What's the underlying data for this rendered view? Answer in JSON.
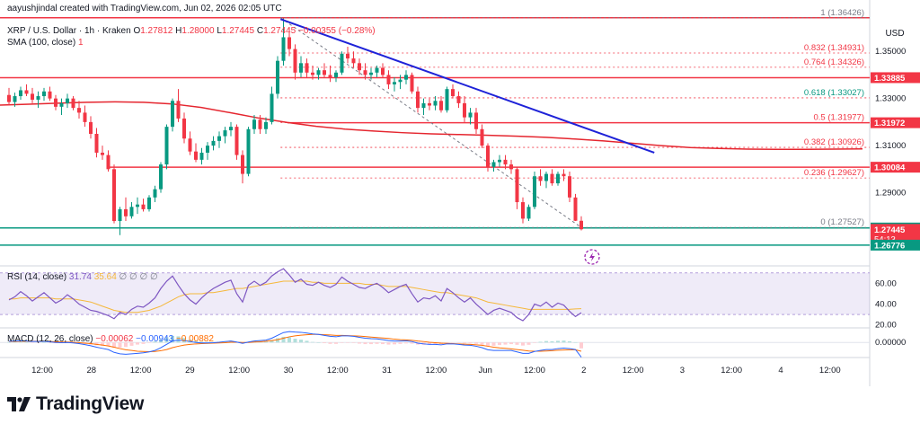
{
  "header": {
    "creator": "aayushjindal created with TradingView.com, Jun 02, 2026 02:05 UTC"
  },
  "symbol": {
    "title": "XRP / U.S. Dollar · 1h · Kraken",
    "o_label": "O",
    "open": "1.27812",
    "h_label": "H",
    "high": "1.28000",
    "l_label": "L",
    "low": "1.27445",
    "c_label": "C",
    "close": "1.27445",
    "change": "−0.00355 (−0.28%)"
  },
  "sma": {
    "label": "SMA (100, close)",
    "value": "1"
  },
  "currency": "USD",
  "price_axis": {
    "ticks": [
      "1.35000",
      "1.33000",
      "1.31000",
      "1.29000",
      "1.27000"
    ],
    "faded_tick": "1.35000",
    "tags": [
      {
        "name": "level-1-33885",
        "text": "1.33885",
        "value": 1.33885,
        "color": "#f23645"
      },
      {
        "name": "level-1-31972",
        "text": "1.31972",
        "value": 1.31972,
        "color": "#f23645"
      },
      {
        "name": "level-1-30084",
        "text": "1.30084",
        "value": 1.30084,
        "color": "#f23645"
      },
      {
        "name": "level-1-27504",
        "text": "1.27504",
        "value": 1.27504,
        "color": "#089981"
      },
      {
        "name": "last-price",
        "text": "1.27445",
        "value": 1.27445,
        "color": "#f23645",
        "countdown": "54:13"
      },
      {
        "name": "level-1-26776",
        "text": "1.26776",
        "value": 1.26776,
        "color": "#089981"
      }
    ]
  },
  "fibonacci": [
    {
      "ratio": "1",
      "price": "(1.36426)",
      "value": 1.36426
    },
    {
      "ratio": "0.832",
      "price": "(1.34931)",
      "value": 1.34931
    },
    {
      "ratio": "0.764",
      "price": "(1.34326)",
      "value": 1.34326
    },
    {
      "ratio": "0.618",
      "price": "(1.33027)",
      "value": 1.33027
    },
    {
      "ratio": "0.5",
      "price": "(1.31977)",
      "value": 1.31977
    },
    {
      "ratio": "0.382",
      "price": "(1.30926)",
      "value": 1.30926
    },
    {
      "ratio": "0.236",
      "price": "(1.29627)",
      "value": 1.29627
    },
    {
      "ratio": "0",
      "price": "(1.27527)",
      "value": 1.27527
    }
  ],
  "horizontal_levels": [
    {
      "value": 1.36426,
      "color": "#f23645"
    },
    {
      "value": 1.33885,
      "color": "#f23645"
    },
    {
      "value": 1.31972,
      "color": "#f23645"
    },
    {
      "value": 1.30084,
      "color": "#f23645"
    },
    {
      "value": 1.27504,
      "color": "#089981"
    },
    {
      "value": 1.26776,
      "color": "#089981"
    }
  ],
  "rsi": {
    "label": "RSI (14, close)",
    "value": "31.74",
    "ma_value": "35.64",
    "placeholders": "∅ ∅ ∅ ∅",
    "ticks": [
      "60.00",
      "40.00",
      "20.00"
    ]
  },
  "macd": {
    "label": "MACD (12, 26, close)",
    "v1": "−0.00062",
    "v2": "−0.00943",
    "v3": "−0.00882",
    "ticks": [
      "0.00000"
    ]
  },
  "time_axis": [
    "12:00",
    "28",
    "12:00",
    "29",
    "12:00",
    "30",
    "12:00",
    "31",
    "12:00",
    "Jun",
    "12:00",
    "2",
    "12:00",
    "3",
    "12:00",
    "4",
    "12:00"
  ],
  "brand": "TradingView",
  "colors": {
    "up": "#089981",
    "down": "#f23645",
    "sma": "#e5262f",
    "trendline": "#1e22d8",
    "rsi": "#7e57c2",
    "rsi_ma": "#f5b83b",
    "macd": "#2962ff",
    "signal": "#ff6d00"
  },
  "chart_data": {
    "type": "candlestick",
    "interval": "1h",
    "x_range": [
      "27 May 2026",
      "4 Jun 2026"
    ],
    "ylim": [
      1.262,
      1.368
    ],
    "candles": [
      {
        "o": 1.3315,
        "h": 1.3345,
        "l": 1.327,
        "c": 1.3285
      },
      {
        "o": 1.3285,
        "h": 1.3325,
        "l": 1.3265,
        "c": 1.331
      },
      {
        "o": 1.331,
        "h": 1.335,
        "l": 1.3295,
        "c": 1.3335
      },
      {
        "o": 1.3335,
        "h": 1.336,
        "l": 1.331,
        "c": 1.332
      },
      {
        "o": 1.332,
        "h": 1.3345,
        "l": 1.328,
        "c": 1.3295
      },
      {
        "o": 1.3295,
        "h": 1.333,
        "l": 1.326,
        "c": 1.331
      },
      {
        "o": 1.331,
        "h": 1.3345,
        "l": 1.329,
        "c": 1.333
      },
      {
        "o": 1.333,
        "h": 1.335,
        "l": 1.329,
        "c": 1.33
      },
      {
        "o": 1.33,
        "h": 1.3315,
        "l": 1.325,
        "c": 1.3265
      },
      {
        "o": 1.3265,
        "h": 1.33,
        "l": 1.323,
        "c": 1.328
      },
      {
        "o": 1.328,
        "h": 1.332,
        "l": 1.326,
        "c": 1.33
      },
      {
        "o": 1.33,
        "h": 1.331,
        "l": 1.325,
        "c": 1.326
      },
      {
        "o": 1.326,
        "h": 1.329,
        "l": 1.3215,
        "c": 1.324
      },
      {
        "o": 1.324,
        "h": 1.327,
        "l": 1.318,
        "c": 1.32
      },
      {
        "o": 1.32,
        "h": 1.3225,
        "l": 1.313,
        "c": 1.315
      },
      {
        "o": 1.315,
        "h": 1.3175,
        "l": 1.305,
        "c": 1.307
      },
      {
        "o": 1.307,
        "h": 1.31,
        "l": 1.304,
        "c": 1.306
      },
      {
        "o": 1.306,
        "h": 1.308,
        "l": 1.299,
        "c": 1.3
      },
      {
        "o": 1.3,
        "h": 1.302,
        "l": 1.277,
        "c": 1.278
      },
      {
        "o": 1.278,
        "h": 1.284,
        "l": 1.272,
        "c": 1.283
      },
      {
        "o": 1.283,
        "h": 1.288,
        "l": 1.278,
        "c": 1.28
      },
      {
        "o": 1.28,
        "h": 1.286,
        "l": 1.279,
        "c": 1.284
      },
      {
        "o": 1.284,
        "h": 1.288,
        "l": 1.281,
        "c": 1.285
      },
      {
        "o": 1.285,
        "h": 1.2875,
        "l": 1.282,
        "c": 1.283
      },
      {
        "o": 1.283,
        "h": 1.289,
        "l": 1.282,
        "c": 1.288
      },
      {
        "o": 1.288,
        "h": 1.293,
        "l": 1.286,
        "c": 1.2915
      },
      {
        "o": 1.2915,
        "h": 1.303,
        "l": 1.29,
        "c": 1.302
      },
      {
        "o": 1.302,
        "h": 1.319,
        "l": 1.3,
        "c": 1.318
      },
      {
        "o": 1.318,
        "h": 1.33,
        "l": 1.316,
        "c": 1.329
      },
      {
        "o": 1.329,
        "h": 1.334,
        "l": 1.32,
        "c": 1.3215
      },
      {
        "o": 1.3215,
        "h": 1.324,
        "l": 1.311,
        "c": 1.313
      },
      {
        "o": 1.313,
        "h": 1.316,
        "l": 1.306,
        "c": 1.3075
      },
      {
        "o": 1.3075,
        "h": 1.311,
        "l": 1.303,
        "c": 1.304
      },
      {
        "o": 1.304,
        "h": 1.309,
        "l": 1.302,
        "c": 1.307
      },
      {
        "o": 1.307,
        "h": 1.3115,
        "l": 1.304,
        "c": 1.31
      },
      {
        "o": 1.31,
        "h": 1.314,
        "l": 1.308,
        "c": 1.312
      },
      {
        "o": 1.312,
        "h": 1.316,
        "l": 1.309,
        "c": 1.314
      },
      {
        "o": 1.314,
        "h": 1.318,
        "l": 1.311,
        "c": 1.3165
      },
      {
        "o": 1.3165,
        "h": 1.32,
        "l": 1.314,
        "c": 1.318
      },
      {
        "o": 1.318,
        "h": 1.319,
        "l": 1.304,
        "c": 1.306
      },
      {
        "o": 1.306,
        "h": 1.308,
        "l": 1.294,
        "c": 1.298
      },
      {
        "o": 1.298,
        "h": 1.318,
        "l": 1.297,
        "c": 1.317
      },
      {
        "o": 1.317,
        "h": 1.323,
        "l": 1.315,
        "c": 1.321
      },
      {
        "o": 1.321,
        "h": 1.323,
        "l": 1.315,
        "c": 1.317
      },
      {
        "o": 1.317,
        "h": 1.322,
        "l": 1.315,
        "c": 1.32
      },
      {
        "o": 1.32,
        "h": 1.335,
        "l": 1.319,
        "c": 1.332
      },
      {
        "o": 1.332,
        "h": 1.348,
        "l": 1.33,
        "c": 1.346
      },
      {
        "o": 1.346,
        "h": 1.364,
        "l": 1.344,
        "c": 1.356
      },
      {
        "o": 1.356,
        "h": 1.36,
        "l": 1.348,
        "c": 1.351
      },
      {
        "o": 1.351,
        "h": 1.353,
        "l": 1.338,
        "c": 1.341
      },
      {
        "o": 1.341,
        "h": 1.348,
        "l": 1.339,
        "c": 1.345
      },
      {
        "o": 1.345,
        "h": 1.347,
        "l": 1.339,
        "c": 1.341
      },
      {
        "o": 1.341,
        "h": 1.344,
        "l": 1.338,
        "c": 1.34
      },
      {
        "o": 1.34,
        "h": 1.343,
        "l": 1.338,
        "c": 1.342
      },
      {
        "o": 1.342,
        "h": 1.345,
        "l": 1.339,
        "c": 1.34
      },
      {
        "o": 1.34,
        "h": 1.344,
        "l": 1.337,
        "c": 1.339
      },
      {
        "o": 1.339,
        "h": 1.342,
        "l": 1.337,
        "c": 1.341
      },
      {
        "o": 1.341,
        "h": 1.35,
        "l": 1.34,
        "c": 1.349
      },
      {
        "o": 1.349,
        "h": 1.352,
        "l": 1.345,
        "c": 1.347
      },
      {
        "o": 1.347,
        "h": 1.35,
        "l": 1.343,
        "c": 1.345
      },
      {
        "o": 1.345,
        "h": 1.347,
        "l": 1.34,
        "c": 1.342
      },
      {
        "o": 1.342,
        "h": 1.345,
        "l": 1.338,
        "c": 1.34
      },
      {
        "o": 1.34,
        "h": 1.343,
        "l": 1.338,
        "c": 1.341
      },
      {
        "o": 1.341,
        "h": 1.344,
        "l": 1.339,
        "c": 1.343
      },
      {
        "o": 1.343,
        "h": 1.345,
        "l": 1.339,
        "c": 1.34
      },
      {
        "o": 1.34,
        "h": 1.342,
        "l": 1.334,
        "c": 1.336
      },
      {
        "o": 1.336,
        "h": 1.339,
        "l": 1.333,
        "c": 1.337
      },
      {
        "o": 1.337,
        "h": 1.34,
        "l": 1.334,
        "c": 1.338
      },
      {
        "o": 1.338,
        "h": 1.342,
        "l": 1.336,
        "c": 1.34
      },
      {
        "o": 1.34,
        "h": 1.341,
        "l": 1.332,
        "c": 1.333
      },
      {
        "o": 1.333,
        "h": 1.335,
        "l": 1.324,
        "c": 1.326
      },
      {
        "o": 1.326,
        "h": 1.33,
        "l": 1.323,
        "c": 1.328
      },
      {
        "o": 1.328,
        "h": 1.33,
        "l": 1.325,
        "c": 1.327
      },
      {
        "o": 1.327,
        "h": 1.331,
        "l": 1.325,
        "c": 1.329
      },
      {
        "o": 1.329,
        "h": 1.331,
        "l": 1.324,
        "c": 1.325
      },
      {
        "o": 1.325,
        "h": 1.335,
        "l": 1.324,
        "c": 1.334
      },
      {
        "o": 1.334,
        "h": 1.336,
        "l": 1.33,
        "c": 1.331
      },
      {
        "o": 1.331,
        "h": 1.333,
        "l": 1.326,
        "c": 1.328
      },
      {
        "o": 1.328,
        "h": 1.331,
        "l": 1.32,
        "c": 1.322
      },
      {
        "o": 1.322,
        "h": 1.326,
        "l": 1.319,
        "c": 1.324
      },
      {
        "o": 1.324,
        "h": 1.326,
        "l": 1.315,
        "c": 1.317
      },
      {
        "o": 1.317,
        "h": 1.319,
        "l": 1.309,
        "c": 1.31
      },
      {
        "o": 1.31,
        "h": 1.311,
        "l": 1.299,
        "c": 1.301
      },
      {
        "o": 1.301,
        "h": 1.304,
        "l": 1.299,
        "c": 1.303
      },
      {
        "o": 1.303,
        "h": 1.306,
        "l": 1.301,
        "c": 1.304
      },
      {
        "o": 1.304,
        "h": 1.306,
        "l": 1.3,
        "c": 1.302
      },
      {
        "o": 1.302,
        "h": 1.304,
        "l": 1.298,
        "c": 1.3
      },
      {
        "o": 1.3,
        "h": 1.301,
        "l": 1.283,
        "c": 1.286
      },
      {
        "o": 1.286,
        "h": 1.288,
        "l": 1.277,
        "c": 1.279
      },
      {
        "o": 1.279,
        "h": 1.285,
        "l": 1.278,
        "c": 1.284
      },
      {
        "o": 1.284,
        "h": 1.299,
        "l": 1.283,
        "c": 1.297
      },
      {
        "o": 1.297,
        "h": 1.3,
        "l": 1.293,
        "c": 1.295
      },
      {
        "o": 1.295,
        "h": 1.299,
        "l": 1.292,
        "c": 1.298
      },
      {
        "o": 1.298,
        "h": 1.3,
        "l": 1.293,
        "c": 1.294
      },
      {
        "o": 1.294,
        "h": 1.299,
        "l": 1.293,
        "c": 1.298
      },
      {
        "o": 1.298,
        "h": 1.3,
        "l": 1.295,
        "c": 1.297
      },
      {
        "o": 1.297,
        "h": 1.299,
        "l": 1.286,
        "c": 1.288
      },
      {
        "o": 1.288,
        "h": 1.2895,
        "l": 1.278,
        "c": 1.2781
      },
      {
        "o": 1.2781,
        "h": 1.28,
        "l": 1.274,
        "c": 1.2745
      }
    ],
    "sma100": [
      1.3272,
      1.3276,
      1.328,
      1.3284,
      1.3286,
      1.3284,
      1.3277,
      1.3262,
      1.324,
      1.3217,
      1.3198,
      1.3182,
      1.317,
      1.3162,
      1.3155,
      1.315,
      1.3147,
      1.3144,
      1.314,
      1.3135,
      1.3128,
      1.312,
      1.311,
      1.31,
      1.3092,
      1.3088,
      1.3085,
      1.3084,
      1.3084,
      1.3085,
      1.3086
    ],
    "trendline": [
      {
        "i": 46.5,
        "y": 1.3637
      },
      {
        "i": 110.5,
        "y": 1.307
      }
    ],
    "fib_anchor": [
      {
        "i": 46.5,
        "y": 1.36426
      },
      {
        "i": 98,
        "y": 1.27527
      }
    ],
    "rsi_ylim": [
      18,
      75
    ],
    "rsi_band": [
      30,
      70
    ],
    "rsi_values": [
      44,
      47,
      52,
      48,
      43,
      47,
      51,
      46,
      41,
      44,
      49,
      45,
      40,
      37,
      34,
      33,
      31,
      29,
      26,
      32,
      30,
      35,
      38,
      37,
      41,
      46,
      55,
      62,
      67,
      58,
      50,
      44,
      40,
      46,
      51,
      55,
      58,
      61,
      63,
      50,
      42,
      58,
      62,
      58,
      61,
      67,
      71,
      74,
      68,
      61,
      64,
      59,
      58,
      61,
      58,
      56,
      59,
      66,
      62,
      59,
      56,
      55,
      58,
      60,
      56,
      51,
      54,
      57,
      59,
      50,
      42,
      46,
      45,
      48,
      43,
      55,
      51,
      46,
      42,
      46,
      40,
      35,
      30,
      34,
      36,
      34,
      32,
      27,
      24,
      30,
      40,
      38,
      42,
      37,
      41,
      39,
      33,
      28,
      31.74
    ],
    "rsi_ma_values": [
      45,
      45,
      46,
      46,
      46,
      46,
      46,
      46,
      45,
      45,
      45,
      45,
      44,
      43,
      42,
      40,
      38,
      36,
      34,
      33,
      32,
      32,
      32,
      33,
      34,
      36,
      38,
      41,
      44,
      47,
      49,
      50,
      50,
      50,
      51,
      51,
      52,
      53,
      54,
      55,
      55,
      56,
      57,
      58,
      59,
      60,
      61,
      62,
      62,
      62,
      62,
      62,
      61,
      61,
      60,
      60,
      60,
      60,
      60,
      60,
      60,
      59,
      59,
      59,
      58,
      57,
      57,
      57,
      57,
      56,
      55,
      54,
      53,
      52,
      51,
      51,
      50,
      49,
      48,
      47,
      46,
      44,
      42,
      41,
      40,
      39,
      38,
      37,
      36,
      35,
      35,
      35,
      35,
      35,
      35,
      35,
      35,
      35.4,
      35.64
    ],
    "macd_ylim": [
      -0.006,
      0.0058
    ],
    "macd_values": [
      0.0005,
      0.0006,
      0.0007,
      0.0006,
      0.0004,
      0.0004,
      0.0005,
      0.0003,
      0.0,
      -0.0001,
      0.0,
      -0.0002,
      -0.0005,
      -0.0009,
      -0.0014,
      -0.002,
      -0.0025,
      -0.003,
      -0.0042,
      -0.0048,
      -0.005,
      -0.0048,
      -0.0046,
      -0.0044,
      -0.004,
      -0.0034,
      -0.0022,
      -0.0008,
      0.0006,
      0.001,
      0.0008,
      0.0004,
      0.0,
      -0.0002,
      -0.0002,
      -0.0001,
      0.0001,
      0.0004,
      0.0006,
      0.0002,
      -0.0004,
      0.0002,
      0.0006,
      0.0008,
      0.001,
      0.0018,
      0.003,
      0.0042,
      0.0046,
      0.0044,
      0.0043,
      0.004,
      0.0036,
      0.0034,
      0.003,
      0.0026,
      0.0024,
      0.0028,
      0.0028,
      0.0026,
      0.0022,
      0.0018,
      0.0016,
      0.0015,
      0.0012,
      0.0008,
      0.0006,
      0.0006,
      0.0007,
      0.0004,
      -0.0003,
      -0.0006,
      -0.0008,
      -0.0008,
      -0.001,
      -0.0006,
      -0.0006,
      -0.0008,
      -0.0011,
      -0.0012,
      -0.0016,
      -0.0022,
      -0.0031,
      -0.0034,
      -0.0034,
      -0.0034,
      -0.0034,
      -0.004,
      -0.0046,
      -0.0046,
      -0.0038,
      -0.0034,
      -0.003,
      -0.003,
      -0.0026,
      -0.0024,
      -0.0026,
      -0.003,
      -0.0062
    ],
    "signal_values": [
      0.0004,
      0.0004,
      0.0005,
      0.0005,
      0.0005,
      0.0005,
      0.0005,
      0.0004,
      0.0003,
      0.0002,
      0.0002,
      0.0001,
      -0.0001,
      -0.0003,
      -0.0005,
      -0.0008,
      -0.0011,
      -0.0015,
      -0.002,
      -0.0026,
      -0.0031,
      -0.0034,
      -0.0037,
      -0.0038,
      -0.0039,
      -0.0038,
      -0.0035,
      -0.003,
      -0.0022,
      -0.0016,
      -0.0011,
      -0.0008,
      -0.0006,
      -0.0005,
      -0.0004,
      -0.0003,
      -0.0002,
      -0.0001,
      0.0001,
      0.0001,
      0.0,
      0.0,
      0.0002,
      0.0003,
      0.0005,
      0.0008,
      0.0012,
      0.0018,
      0.0024,
      0.0028,
      0.0031,
      0.0033,
      0.0034,
      0.0034,
      0.0033,
      0.0032,
      0.003,
      0.003,
      0.0029,
      0.0028,
      0.0027,
      0.0025,
      0.0023,
      0.0021,
      0.0019,
      0.0017,
      0.0014,
      0.0012,
      0.0011,
      0.0009,
      0.0006,
      0.0004,
      0.0001,
      -0.0001,
      -0.0003,
      -0.0004,
      -0.0005,
      -0.0006,
      -0.0007,
      -0.0008,
      -0.001,
      -0.0012,
      -0.0016,
      -0.002,
      -0.0023,
      -0.0025,
      -0.0027,
      -0.003,
      -0.0033,
      -0.0036,
      -0.0037,
      -0.0037,
      -0.0036,
      -0.0035,
      -0.0033,
      -0.0032,
      -0.0031,
      -0.0031,
      -0.0037
    ]
  }
}
